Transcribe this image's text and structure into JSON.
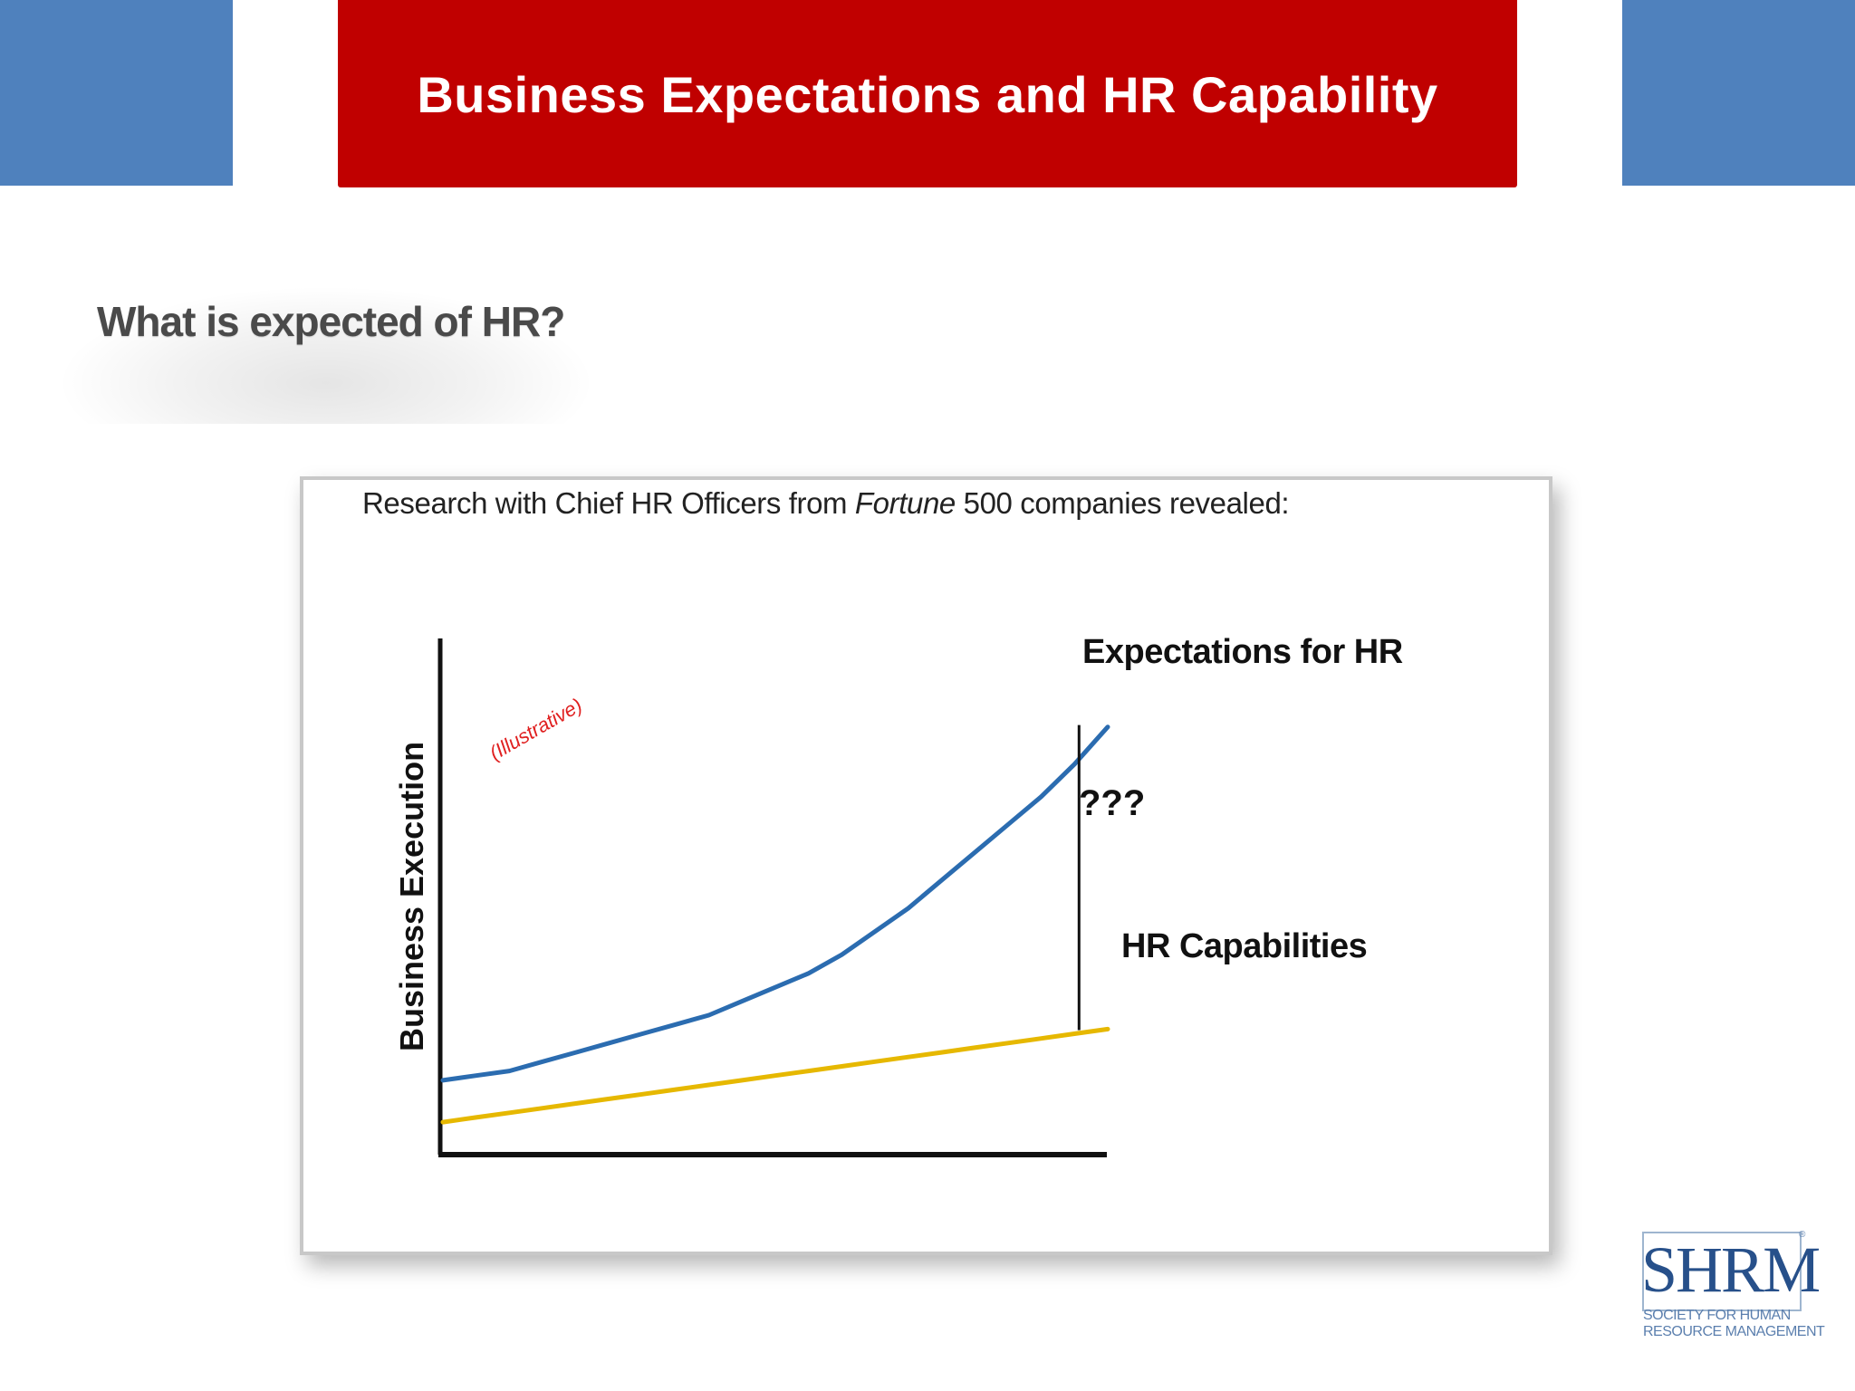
{
  "slide": {
    "title": "Business Expectations and HR Capability",
    "subtitle": "What is expected of HR?",
    "research_text_before": "Research with Chief HR Officers from ",
    "research_text_italic": "Fortune",
    "research_text_after": " 500 companies revealed:",
    "colors": {
      "title_bar": "#c00000",
      "side_blocks": "#4f81bd",
      "subtitle_text": "#4a4a4a"
    }
  },
  "logo": {
    "letters": "SHRM",
    "line1": "SOCIETY FOR HUMAN",
    "line2": "RESOURCE MANAGEMENT",
    "registered": "®"
  },
  "chart_data": {
    "type": "line",
    "ylabel": "Business Execution",
    "xlabel": "",
    "annotation": "(Illustrative)",
    "gap_label": "???",
    "grid": false,
    "x": [
      0,
      5,
      10,
      15,
      20,
      25,
      30,
      35,
      40,
      45,
      50,
      55,
      60,
      65,
      70,
      75,
      80,
      85,
      90,
      95,
      100
    ],
    "series": [
      {
        "name": "Expectations for HR",
        "color": "#2b6cb0",
        "values": [
          4,
          5,
          6,
          8,
          10,
          12,
          14,
          16,
          18,
          21,
          24,
          27,
          31,
          36,
          41,
          47,
          53,
          59,
          65,
          72,
          80
        ]
      },
      {
        "name": "HR Capabilities",
        "color": "#e6b800",
        "values": [
          -5,
          -4,
          -3,
          -2,
          -1,
          0,
          1,
          2,
          3,
          4,
          5,
          6,
          7,
          8,
          9,
          10,
          11,
          12,
          13,
          14,
          15
        ]
      }
    ]
  }
}
